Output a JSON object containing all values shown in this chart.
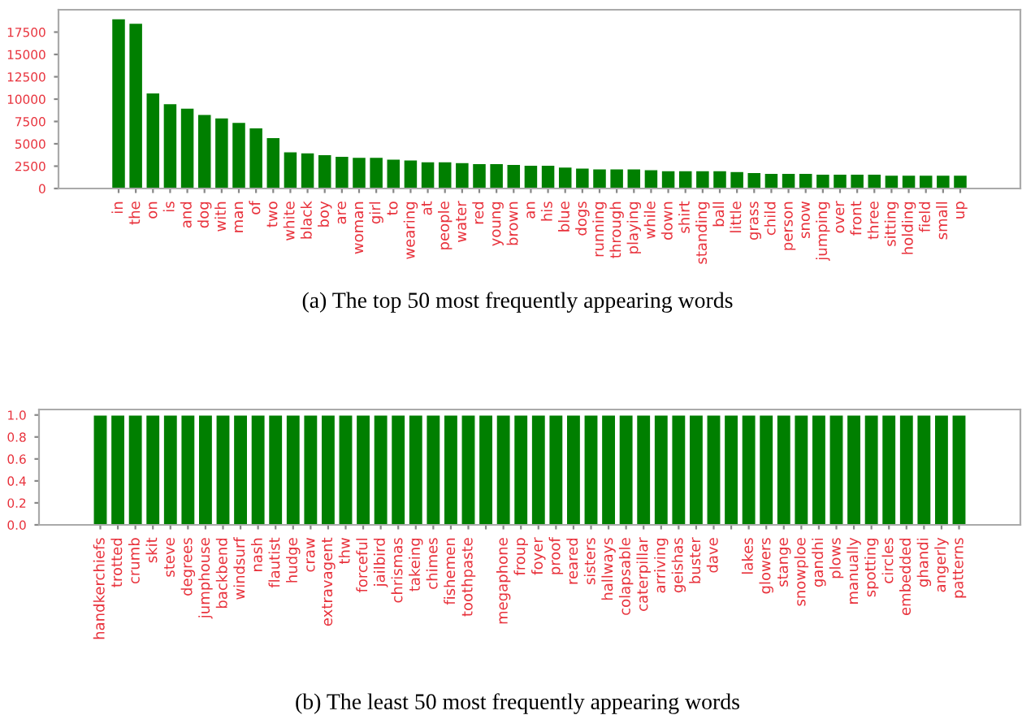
{
  "chart_data": [
    {
      "type": "bar",
      "annotations": [
        "(a) The top 50 most frequently appearing words"
      ],
      "categories": [
        "in",
        "the",
        "on",
        "is",
        "and",
        "dog",
        "with",
        "man",
        "of",
        "two",
        "white",
        "black",
        "boy",
        "are",
        "woman",
        "girl",
        "to",
        "wearing",
        "at",
        "people",
        "water",
        "red",
        "young",
        "brown",
        "an",
        "his",
        "blue",
        "dogs",
        "running",
        "through",
        "playing",
        "while",
        "down",
        "shirt",
        "standing",
        "ball",
        "little",
        "grass",
        "child",
        "person",
        "snow",
        "jumping",
        "over",
        "front",
        "three",
        "sitting",
        "holding",
        "field",
        "small",
        "up"
      ],
      "values": [
        19000,
        18500,
        10700,
        9500,
        9000,
        8300,
        7900,
        7400,
        6800,
        5700,
        4100,
        4000,
        3800,
        3600,
        3500,
        3500,
        3300,
        3200,
        3000,
        3000,
        2900,
        2800,
        2800,
        2700,
        2600,
        2600,
        2400,
        2300,
        2200,
        2200,
        2200,
        2100,
        2000,
        2000,
        2000,
        2000,
        1900,
        1800,
        1700,
        1700,
        1700,
        1600,
        1600,
        1600,
        1600,
        1500,
        1500,
        1500,
        1500,
        1500
      ],
      "color": "#007f00",
      "ylim": [
        0,
        20000
      ],
      "yticks": [
        0,
        2500,
        5000,
        7500,
        10000,
        12500,
        15000,
        17500
      ],
      "grid": false,
      "legend": false
    },
    {
      "type": "bar",
      "annotations": [
        "(b) The least 50 most frequently appearing words"
      ],
      "categories": [
        "handkerchiefs",
        "trotted",
        "crumb",
        "skit",
        "steve",
        "degrees",
        "jumphouse",
        "backbend",
        "windsurf",
        "nash",
        "flautist",
        "hudge",
        "craw",
        "extravagent",
        "thw",
        "forceful",
        "jailbird",
        "chrismas",
        "takeing",
        "chimes",
        "fishemen",
        "toothpaste",
        null,
        "megaphone",
        "froup",
        "foyer",
        "proof",
        "reared",
        "sisters",
        "hallways",
        "colapsable",
        "caterpillar",
        "arriving",
        "geishas",
        "buster",
        "dave",
        null,
        "lakes",
        "glowers",
        "stange",
        "snowploe",
        "gandhi",
        "plows",
        "manually",
        "spotting",
        "circles",
        "embedded",
        "ghandi",
        "angerly",
        "patterns"
      ],
      "values": [
        1,
        1,
        1,
        1,
        1,
        1,
        1,
        1,
        1,
        1,
        1,
        1,
        1,
        1,
        1,
        1,
        1,
        1,
        1,
        1,
        1,
        1,
        1,
        1,
        1,
        1,
        1,
        1,
        1,
        1,
        1,
        1,
        1,
        1,
        1,
        1,
        1,
        1,
        1,
        1,
        1,
        1,
        1,
        1,
        1,
        1,
        1,
        1,
        1,
        1
      ],
      "color": "#007f00",
      "ylim": [
        0,
        1.05
      ],
      "yticks": [
        {
          "value": 0,
          "label": "0.0"
        },
        {
          "value": 0.2,
          "label": "0.2"
        },
        {
          "value": 0.4,
          "label": "0.4"
        },
        {
          "value": 0.6,
          "label": "0.6"
        },
        {
          "value": 0.8,
          "label": "0.8"
        },
        {
          "value": 1,
          "label": "1.0"
        }
      ],
      "grid": false,
      "legend": false
    }
  ]
}
